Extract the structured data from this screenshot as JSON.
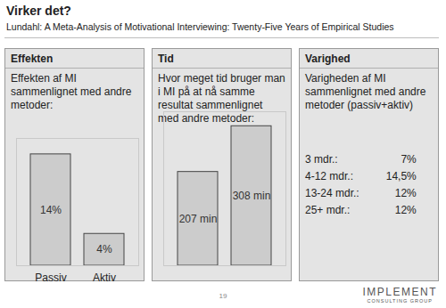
{
  "header": {
    "title": "Virker det?",
    "subtitle": "Lundahl: A Meta-Analysis of Motivational Interviewing: Twenty-Five Years of Empirical Studies"
  },
  "chart_data": [
    {
      "type": "bar",
      "title": "Effekten",
      "subtitle": "Effekten af MI sammenlignet med andre metoder:",
      "categories": [
        "Passiv",
        "Aktiv"
      ],
      "values": [
        14,
        4
      ],
      "value_labels": [
        "14%",
        "4%"
      ],
      "data_labels": true,
      "color": "#cccccc",
      "ylim": [
        0,
        16
      ],
      "yticks": [],
      "tick_labels": "x"
    },
    {
      "type": "bar",
      "title": "Tid",
      "subtitle": "Hvor meget tid bruger man i MI på at nå samme resultat sammenlignet med andre metoder:",
      "categories": [
        null,
        null
      ],
      "values": [
        207,
        308
      ],
      "value_labels": [
        "207 min",
        "308 min"
      ],
      "data_labels": true,
      "color": "#cccccc",
      "ylim": [
        0,
        340
      ],
      "yticks": [],
      "tick_labels": false
    }
  ],
  "panel": {
    "title": "Varighed",
    "subtitle": "Varigheden af MI sammenlignet med andre metoder (passiv+aktiv)",
    "rows": [
      [
        "3 mdr.:",
        "7%"
      ],
      [
        "4-12 mdr.:",
        "14,5%"
      ],
      [
        "13-24 mdr.:",
        "12%"
      ],
      [
        "25+ mdr.:",
        "12%"
      ]
    ]
  },
  "footer": {
    "page": "19",
    "logo": "IMPLEMENT",
    "logo_subtitle": "CONSULTING GROUP"
  }
}
